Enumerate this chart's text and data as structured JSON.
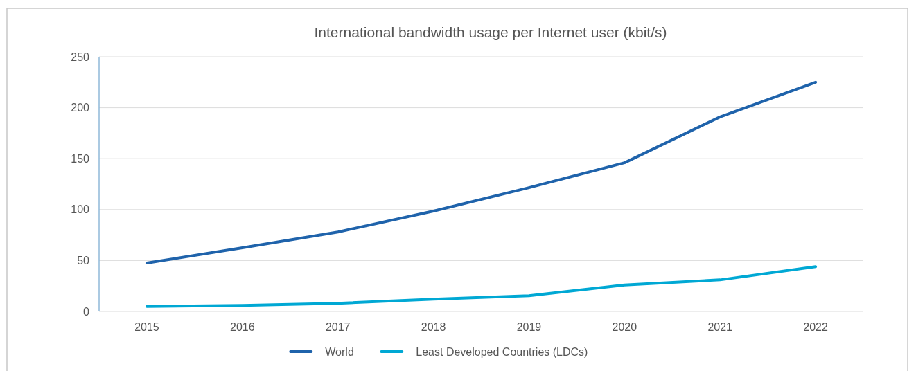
{
  "chart_data": {
    "type": "line",
    "title": "International bandwidth usage per Internet user (kbit/s)",
    "categories": [
      "2015",
      "2016",
      "2017",
      "2018",
      "2019",
      "2020",
      "2021",
      "2022"
    ],
    "series": [
      {
        "name": "World",
        "color": "#1f63ab",
        "values": [
          47.5,
          62.5,
          78,
          98.5,
          121.5,
          146,
          191,
          225
        ]
      },
      {
        "name": "Least Developed Countries (LDCs)",
        "color": "#00a8d4",
        "values": [
          5,
          6,
          8,
          12,
          15.5,
          26,
          31,
          44
        ]
      }
    ],
    "ylim": [
      0,
      250
    ],
    "yticks": [
      0,
      50,
      100,
      150,
      200,
      250
    ],
    "grid": "y",
    "legend": "bottom",
    "marker": "none",
    "line_style": "solid"
  }
}
